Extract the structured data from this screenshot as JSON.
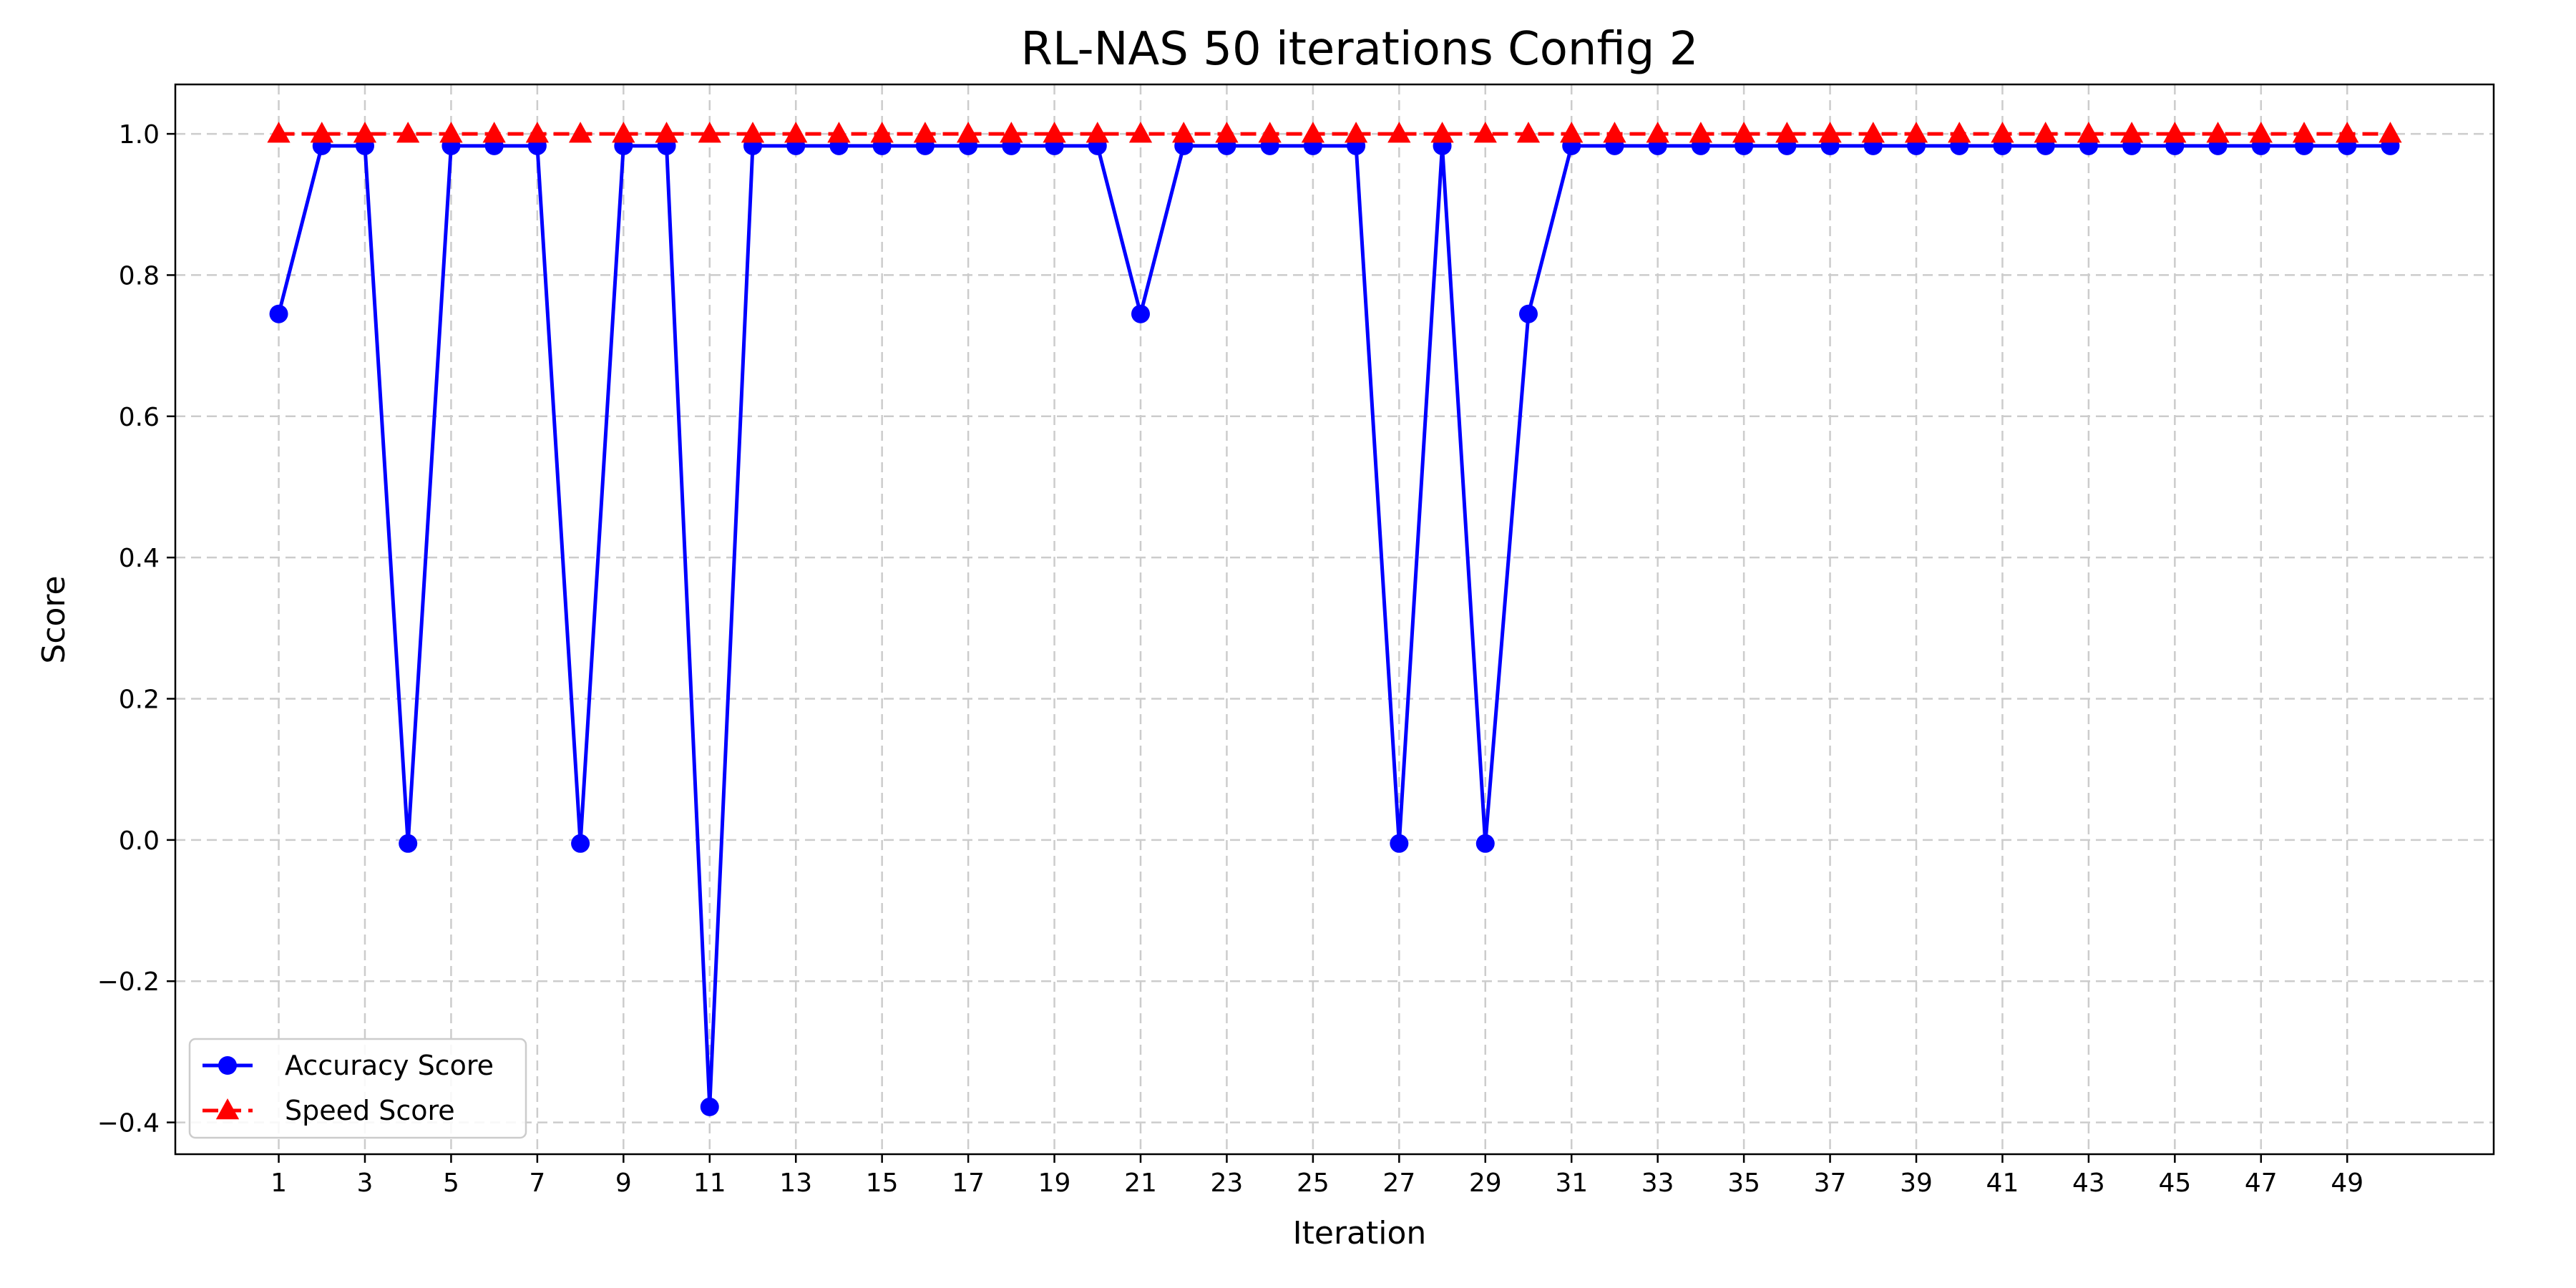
{
  "chart_data": {
    "type": "line",
    "title": "RL-NAS 50 iterations Config 2",
    "xlabel": "Iteration",
    "ylabel": "Score",
    "xlim": [
      -1.4,
      52.4
    ],
    "ylim": [
      -0.445,
      1.07
    ],
    "grid": true,
    "legend_position": "lower-left",
    "x_ticks": [
      1,
      3,
      5,
      7,
      9,
      11,
      13,
      15,
      17,
      19,
      21,
      23,
      25,
      27,
      29,
      31,
      33,
      35,
      37,
      39,
      41,
      43,
      45,
      47,
      49
    ],
    "y_ticks": [
      {
        "value": -0.4,
        "label": "−0.4"
      },
      {
        "value": -0.2,
        "label": "−0.2"
      },
      {
        "value": 0.0,
        "label": "0.0"
      },
      {
        "value": 0.2,
        "label": "0.2"
      },
      {
        "value": 0.4,
        "label": "0.4"
      },
      {
        "value": 0.6,
        "label": "0.6"
      },
      {
        "value": 0.8,
        "label": "0.8"
      },
      {
        "value": 1.0,
        "label": "1.0"
      }
    ],
    "x": [
      1,
      2,
      3,
      4,
      5,
      6,
      7,
      8,
      9,
      10,
      11,
      12,
      13,
      14,
      15,
      16,
      17,
      18,
      19,
      20,
      21,
      22,
      23,
      24,
      25,
      26,
      27,
      28,
      29,
      30,
      31,
      32,
      33,
      34,
      35,
      36,
      37,
      38,
      39,
      40,
      41,
      42,
      43,
      44,
      45,
      46,
      47,
      48,
      49,
      50
    ],
    "series": [
      {
        "name": "Accuracy Score",
        "color": "#0000ff",
        "marker": "circle",
        "line_style": "solid",
        "values": [
          0.745,
          0.983,
          0.983,
          -0.005,
          0.983,
          0.983,
          0.983,
          -0.005,
          0.983,
          0.983,
          -0.378,
          0.983,
          0.983,
          0.983,
          0.983,
          0.983,
          0.983,
          0.983,
          0.983,
          0.983,
          0.745,
          0.983,
          0.983,
          0.983,
          0.983,
          0.983,
          -0.005,
          0.983,
          -0.005,
          0.745,
          0.983,
          0.983,
          0.983,
          0.983,
          0.983,
          0.983,
          0.983,
          0.983,
          0.983,
          0.983,
          0.983,
          0.983,
          0.983,
          0.983,
          0.983,
          0.983,
          0.983,
          0.983,
          0.983,
          0.983
        ]
      },
      {
        "name": "Speed Score",
        "color": "#ff0000",
        "marker": "triangle-up",
        "line_style": "dashed",
        "values": [
          1,
          1,
          1,
          1,
          1,
          1,
          1,
          1,
          1,
          1,
          1,
          1,
          1,
          1,
          1,
          1,
          1,
          1,
          1,
          1,
          1,
          1,
          1,
          1,
          1,
          1,
          1,
          1,
          1,
          1,
          1,
          1,
          1,
          1,
          1,
          1,
          1,
          1,
          1,
          1,
          1,
          1,
          1,
          1,
          1,
          1,
          1,
          1,
          1,
          1
        ]
      }
    ]
  }
}
